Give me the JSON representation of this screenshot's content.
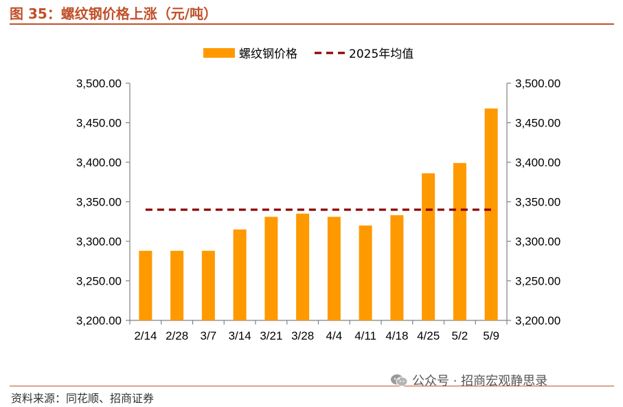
{
  "figure": {
    "title": "图 35：螺纹钢价格上涨（元/吨）",
    "source": "资料来源：同花顺、招商证券",
    "watermark": "公众号 · 招商宏观静思录",
    "watermark_icon": "wechat-icon"
  },
  "colors": {
    "bar": "#ff9900",
    "mean_line": "#8b0000",
    "accent": "#c0502a",
    "axis": "#808080"
  },
  "chart_data": {
    "type": "bar",
    "categories": [
      "2/14",
      "2/28",
      "3/7",
      "3/14",
      "3/21",
      "3/28",
      "4/4",
      "4/11",
      "4/18",
      "4/25",
      "5/2",
      "5/9"
    ],
    "series": [
      {
        "name": "螺纹钢价格",
        "type": "bar",
        "values": [
          3288,
          3288,
          3288,
          3315,
          3331,
          3335,
          3331,
          3320,
          3333,
          3386,
          3399,
          3468
        ]
      },
      {
        "name": "2025年均值",
        "type": "line-dashed",
        "values": [
          3340,
          3340,
          3340,
          3340,
          3340,
          3340,
          3340,
          3340,
          3340,
          3340,
          3340,
          3340
        ]
      }
    ],
    "y_left": {
      "range": [
        3200,
        3500
      ],
      "ticks": [
        "3,200.00",
        "3,250.00",
        "3,300.00",
        "3,350.00",
        "3,400.00",
        "3,450.00",
        "3,500.00"
      ]
    },
    "y_right": {
      "range": [
        3200,
        3500
      ],
      "ticks": [
        "3,200.00",
        "3,250.00",
        "3,300.00",
        "3,350.00",
        "3,400.00",
        "3,450.00",
        "3,500.00"
      ]
    },
    "grid": false,
    "legend": {
      "position": "top-center"
    }
  }
}
